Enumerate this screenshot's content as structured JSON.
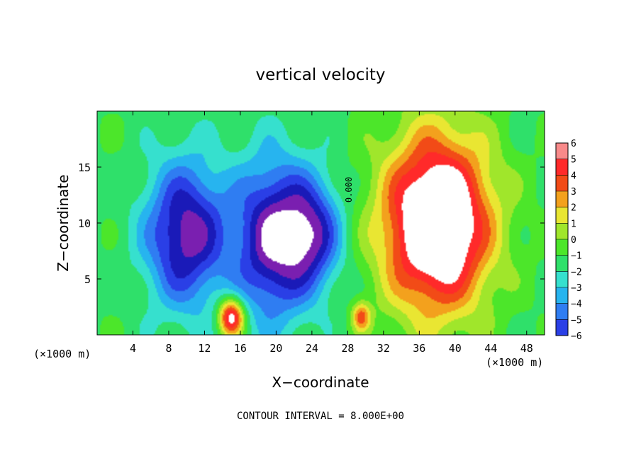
{
  "chart_data": {
    "type": "heatmap",
    "title": "vertical velocity",
    "xlabel": "X−coordinate",
    "ylabel": "Z−coordinate",
    "x_unit_label": "(×1000 m)",
    "x_unit_label_right": "(×1000 m)",
    "xlim": [
      0,
      50
    ],
    "ylim": [
      0,
      20
    ],
    "x_ticks": [
      4,
      8,
      12,
      16,
      20,
      24,
      28,
      32,
      36,
      40,
      44,
      48
    ],
    "x_tick_labels": [
      "4",
      "8",
      "12",
      "16",
      "20",
      "24",
      "28",
      "32",
      "36",
      "40",
      "44",
      "48"
    ],
    "y_ticks": [
      5,
      10,
      15
    ],
    "y_tick_labels": [
      "5",
      "10",
      "15"
    ],
    "colorbar": {
      "min": -6,
      "max": 6,
      "ticks": [
        "6",
        "5",
        "4",
        "3",
        "2",
        "1",
        "0",
        "−1",
        "−2",
        "−3",
        "−4",
        "−5",
        "−6"
      ]
    },
    "contour_label": "0.000",
    "footer": "CONTOUR INTERVAL = 8.000E+00",
    "features": [
      {
        "kind": "downdraft",
        "x": 10,
        "z": 9,
        "sx": 3.2,
        "sz": 4.5,
        "amp": -6
      },
      {
        "kind": "downdraft",
        "x": 19.5,
        "z": 8.5,
        "sx": 2.8,
        "sz": 5.0,
        "amp": -6
      },
      {
        "kind": "downdraft",
        "x": 24,
        "z": 9,
        "sx": 2.3,
        "sz": 3.5,
        "amp": -5
      },
      {
        "kind": "updraft",
        "x": 38,
        "z": 10,
        "sx": 4.2,
        "sz": 5.5,
        "amp": 9
      },
      {
        "kind": "updraft",
        "x": 15,
        "z": 1.6,
        "sx": 1.0,
        "sz": 1.2,
        "amp": 7
      },
      {
        "kind": "updraft",
        "x": 29.5,
        "z": 1.6,
        "sx": 0.7,
        "sz": 0.9,
        "amp": 4
      }
    ]
  }
}
